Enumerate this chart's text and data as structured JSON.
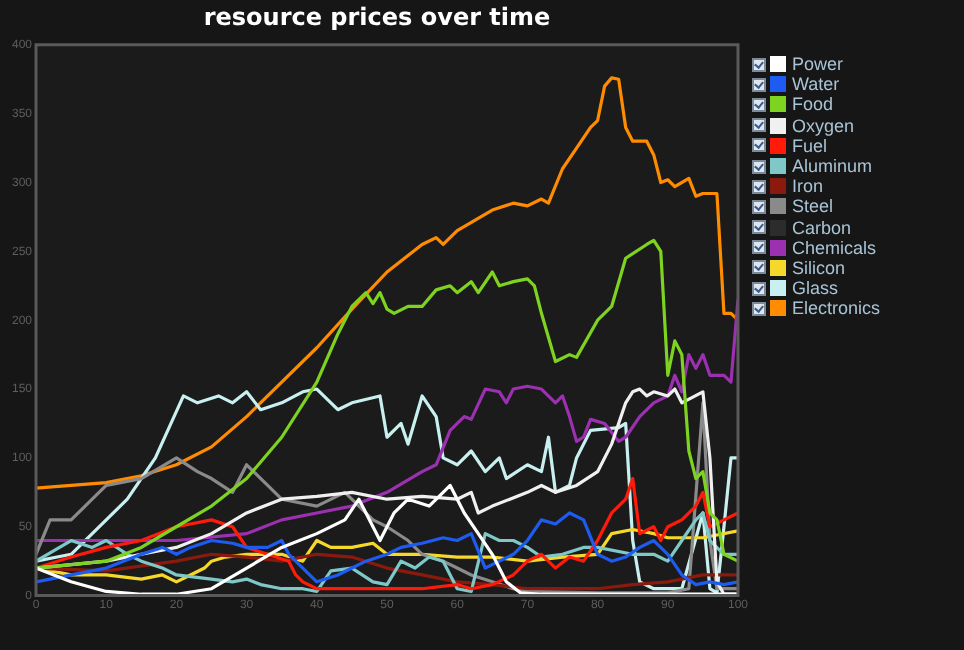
{
  "chart_data": {
    "type": "line",
    "title": "resource prices over time",
    "xlim": [
      0,
      100
    ],
    "ylim": [
      0,
      400
    ],
    "xticks": [
      0,
      10,
      20,
      30,
      40,
      50,
      60,
      70,
      80,
      90,
      100
    ],
    "yticks": [
      0,
      50,
      100,
      150,
      200,
      250,
      300,
      350,
      400
    ],
    "legend": "right",
    "marker": "none",
    "line_style": "solid",
    "series": [
      {
        "name": "Power",
        "color": "#ffffff",
        "x": [
          0,
          5,
          10,
          15,
          20,
          25,
          30,
          35,
          40,
          44,
          46,
          48,
          49,
          51,
          53,
          56,
          58,
          59,
          61,
          63,
          65,
          67,
          69,
          72,
          80,
          90,
          100
        ],
        "values": [
          20,
          10,
          3,
          1,
          1,
          5,
          20,
          35,
          45,
          55,
          70,
          50,
          40,
          60,
          70,
          65,
          75,
          80,
          60,
          45,
          30,
          10,
          2,
          1,
          1,
          1,
          1
        ]
      },
      {
        "name": "Water",
        "color": "#1e5bf0",
        "x": [
          0,
          5,
          10,
          15,
          18,
          20,
          22,
          25,
          28,
          30,
          33,
          35,
          36,
          38,
          40,
          43,
          45,
          47,
          50,
          52,
          55,
          58,
          60,
          62,
          64,
          66,
          68,
          70,
          72,
          74,
          76,
          78,
          80,
          82,
          84,
          86,
          88,
          90,
          92,
          94,
          96,
          98,
          100
        ],
        "values": [
          10,
          15,
          20,
          30,
          35,
          30,
          35,
          40,
          38,
          35,
          35,
          40,
          30,
          20,
          10,
          15,
          20,
          25,
          30,
          35,
          38,
          42,
          40,
          45,
          20,
          25,
          30,
          40,
          55,
          52,
          60,
          55,
          30,
          25,
          28,
          35,
          40,
          30,
          15,
          8,
          10,
          8,
          10
        ]
      },
      {
        "name": "Food",
        "color": "#7ed321",
        "x": [
          0,
          10,
          15,
          20,
          25,
          30,
          35,
          40,
          43,
          45,
          47,
          48,
          49,
          50,
          51,
          53,
          55,
          57,
          59,
          60,
          62,
          63,
          65,
          66,
          68,
          70,
          71,
          72,
          74,
          76,
          77,
          80,
          82,
          84,
          87,
          88,
          89,
          90,
          91,
          92,
          93,
          94,
          95,
          96,
          97,
          98,
          100
        ],
        "values": [
          20,
          25,
          35,
          50,
          65,
          85,
          115,
          155,
          190,
          210,
          220,
          212,
          220,
          208,
          205,
          210,
          210,
          222,
          225,
          220,
          228,
          220,
          235,
          225,
          228,
          230,
          225,
          205,
          170,
          175,
          173,
          200,
          210,
          245,
          255,
          258,
          250,
          160,
          185,
          175,
          105,
          85,
          90,
          60,
          55,
          30,
          25
        ]
      },
      {
        "name": "Oxygen",
        "color": "#f0f0f0",
        "x": [
          0,
          10,
          15,
          20,
          25,
          30,
          35,
          40,
          45,
          50,
          55,
          60,
          62,
          63,
          65,
          70,
          72,
          74,
          77,
          80,
          82,
          84,
          85,
          86,
          87,
          88,
          90,
          91,
          92,
          95,
          96,
          97,
          98,
          100
        ],
        "values": [
          20,
          25,
          30,
          35,
          45,
          60,
          70,
          72,
          75,
          70,
          72,
          70,
          75,
          60,
          65,
          75,
          80,
          75,
          80,
          90,
          110,
          140,
          148,
          150,
          145,
          148,
          145,
          150,
          140,
          148,
          100,
          10,
          1,
          1
        ]
      },
      {
        "name": "Fuel",
        "color": "#ff1a0a",
        "x": [
          0,
          5,
          10,
          15,
          20,
          25,
          28,
          30,
          33,
          36,
          37,
          38,
          40,
          45,
          50,
          55,
          60,
          62,
          65,
          68,
          70,
          72,
          74,
          76,
          78,
          80,
          82,
          84,
          85,
          86,
          88,
          89,
          90,
          92,
          94,
          95,
          96,
          98,
          100
        ],
        "values": [
          20,
          28,
          35,
          40,
          50,
          55,
          50,
          35,
          30,
          25,
          15,
          10,
          5,
          5,
          5,
          5,
          8,
          5,
          8,
          15,
          25,
          30,
          20,
          28,
          25,
          40,
          60,
          70,
          85,
          45,
          50,
          40,
          50,
          55,
          65,
          75,
          50,
          55,
          60
        ]
      },
      {
        "name": "Aluminum",
        "color": "#7ec8c8",
        "x": [
          0,
          5,
          8,
          10,
          13,
          15,
          18,
          20,
          25,
          28,
          30,
          32,
          35,
          38,
          40,
          42,
          45,
          48,
          50,
          52,
          54,
          56,
          58,
          60,
          62,
          64,
          66,
          68,
          70,
          72,
          75,
          78,
          80,
          85,
          88,
          90,
          92,
          94,
          95,
          96,
          98,
          100
        ],
        "values": [
          25,
          40,
          35,
          40,
          30,
          25,
          20,
          15,
          12,
          10,
          12,
          8,
          5,
          5,
          3,
          18,
          20,
          10,
          8,
          25,
          20,
          28,
          25,
          5,
          3,
          45,
          40,
          40,
          35,
          28,
          30,
          35,
          35,
          30,
          30,
          25,
          40,
          55,
          60,
          40,
          30,
          30
        ]
      },
      {
        "name": "Iron",
        "color": "#8b1a0e",
        "x": [
          0,
          10,
          20,
          25,
          30,
          35,
          40,
          45,
          50,
          55,
          60,
          65,
          70,
          75,
          80,
          85,
          90,
          95,
          100
        ],
        "values": [
          20,
          18,
          25,
          30,
          28,
          25,
          30,
          28,
          20,
          15,
          10,
          8,
          5,
          5,
          5,
          8,
          10,
          15,
          15
        ]
      },
      {
        "name": "Steel",
        "color": "#8a8a8a",
        "x": [
          0,
          2,
          5,
          8,
          10,
          15,
          20,
          23,
          25,
          28,
          30,
          33,
          35,
          40,
          44,
          46,
          48,
          50,
          53,
          55,
          58,
          60,
          62,
          65,
          68,
          70,
          80,
          90,
          93,
          95,
          96,
          97,
          100
        ],
        "values": [
          30,
          55,
          55,
          70,
          80,
          85,
          100,
          90,
          85,
          75,
          95,
          80,
          70,
          65,
          75,
          65,
          55,
          50,
          40,
          30,
          25,
          20,
          15,
          10,
          5,
          3,
          2,
          2,
          5,
          140,
          40,
          5,
          5
        ]
      },
      {
        "name": "Carbon",
        "color": "#2c2c2c"
      },
      {
        "name": "Chemicals",
        "color": "#9b30b0",
        "x": [
          0,
          20,
          30,
          35,
          40,
          45,
          50,
          55,
          57,
          59,
          61,
          62,
          64,
          66,
          67,
          68,
          70,
          72,
          74,
          75,
          76,
          77,
          78,
          79,
          81,
          83,
          84,
          86,
          88,
          90,
          91,
          92,
          93,
          94,
          95,
          96,
          98,
          99,
          100
        ],
        "values": [
          40,
          40,
          45,
          55,
          60,
          65,
          75,
          90,
          95,
          120,
          130,
          128,
          150,
          148,
          140,
          150,
          152,
          150,
          140,
          145,
          130,
          112,
          115,
          128,
          125,
          112,
          115,
          130,
          140,
          145,
          160,
          148,
          175,
          165,
          175,
          160,
          160,
          155,
          215
        ]
      },
      {
        "name": "Silicon",
        "color": "#f5d82a",
        "x": [
          0,
          5,
          10,
          15,
          18,
          20,
          22,
          24,
          25,
          27,
          30,
          35,
          38,
          40,
          42,
          45,
          48,
          50,
          55,
          60,
          65,
          70,
          75,
          80,
          82,
          85,
          88,
          90,
          95,
          100
        ],
        "values": [
          20,
          15,
          15,
          12,
          15,
          10,
          15,
          20,
          25,
          28,
          30,
          30,
          25,
          40,
          35,
          35,
          38,
          30,
          30,
          28,
          28,
          25,
          28,
          30,
          45,
          48,
          45,
          42,
          42,
          47
        ]
      },
      {
        "name": "Glass",
        "color": "#c8f0f0",
        "x": [
          0,
          5,
          13,
          17,
          21,
          23,
          26,
          28,
          30,
          32,
          35,
          38,
          40,
          43,
          45,
          49,
          50,
          52,
          53,
          55,
          57,
          58,
          60,
          62,
          64,
          66,
          67,
          70,
          72,
          73,
          74,
          76,
          77,
          79,
          83,
          84,
          85,
          86,
          88,
          92,
          95,
          96,
          97,
          98,
          99,
          100
        ],
        "values": [
          25,
          30,
          70,
          100,
          145,
          140,
          145,
          140,
          148,
          135,
          140,
          148,
          150,
          135,
          140,
          145,
          115,
          125,
          110,
          145,
          130,
          100,
          95,
          105,
          90,
          100,
          85,
          95,
          90,
          115,
          75,
          80,
          100,
          120,
          122,
          125,
          40,
          10,
          5,
          5,
          60,
          5,
          2,
          50,
          100,
          100
        ]
      },
      {
        "name": "Electronics",
        "color": "#ff8c00",
        "x": [
          0,
          10,
          15,
          20,
          25,
          30,
          35,
          40,
          45,
          50,
          55,
          57,
          58,
          60,
          65,
          68,
          70,
          72,
          73,
          75,
          77,
          79,
          80,
          81,
          82,
          83,
          84,
          85,
          87,
          88,
          89,
          90,
          91,
          93,
          94,
          95,
          97,
          98,
          99,
          100
        ],
        "values": [
          78,
          82,
          87,
          95,
          108,
          130,
          155,
          180,
          208,
          235,
          255,
          260,
          255,
          265,
          280,
          285,
          283,
          288,
          285,
          310,
          325,
          340,
          345,
          370,
          376,
          375,
          340,
          330,
          330,
          320,
          300,
          302,
          297,
          303,
          290,
          292,
          292,
          205,
          205,
          200
        ]
      }
    ]
  }
}
